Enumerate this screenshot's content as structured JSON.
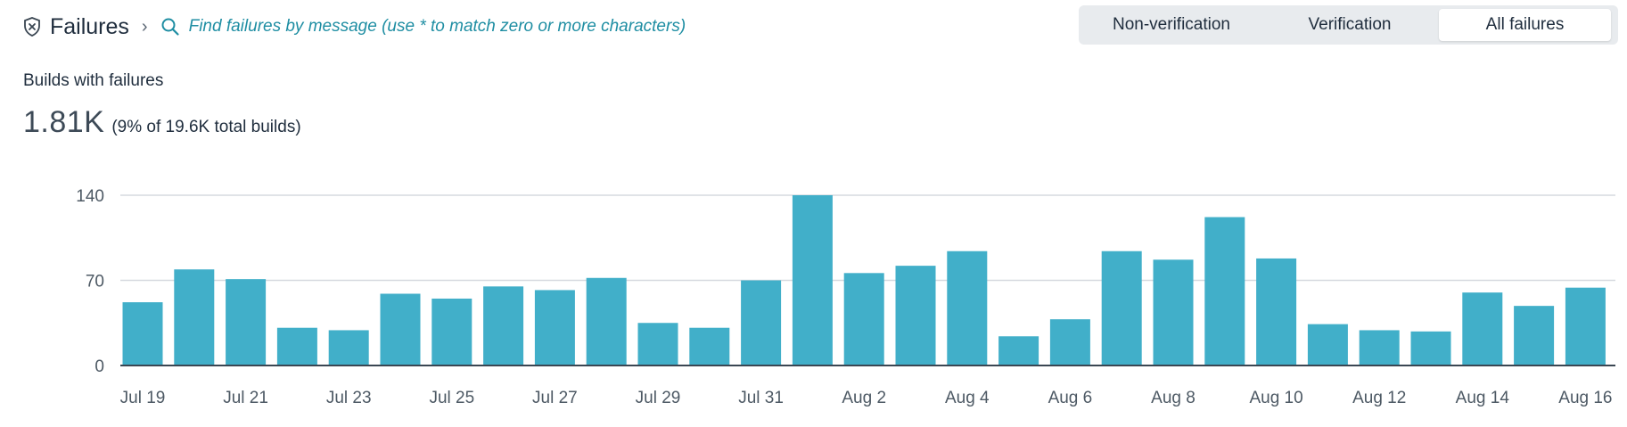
{
  "header": {
    "title": "Failures",
    "separator": "›",
    "search_placeholder": "Find failures by message (use * to match zero or more characters)"
  },
  "filters": [
    {
      "label": "Non-verification",
      "selected": false
    },
    {
      "label": "Verification",
      "selected": false
    },
    {
      "label": "All failures",
      "selected": true
    }
  ],
  "summary": {
    "title": "Builds with failures",
    "value": "1.81K",
    "detail": "(9% of 19.6K total builds)"
  },
  "colors": {
    "bar": "#41afc9",
    "accent": "#1f8ea3",
    "grid": "#d6dadf",
    "axis": "#3a4652"
  },
  "icons": {
    "title_icon": "shield-x-icon",
    "search_icon": "search-icon"
  },
  "chart_data": {
    "type": "bar",
    "categories": [
      "Jul 19",
      "Jul 20",
      "Jul 21",
      "Jul 22",
      "Jul 23",
      "Jul 24",
      "Jul 25",
      "Jul 26",
      "Jul 27",
      "Jul 28",
      "Jul 29",
      "Jul 30",
      "Jul 31",
      "Aug 1",
      "Aug 2",
      "Aug 3",
      "Aug 4",
      "Aug 5",
      "Aug 6",
      "Aug 7",
      "Aug 8",
      "Aug 9",
      "Aug 10",
      "Aug 11",
      "Aug 12",
      "Aug 13",
      "Aug 14",
      "Aug 15",
      "Aug 16"
    ],
    "values": [
      52,
      79,
      71,
      31,
      29,
      59,
      55,
      65,
      62,
      72,
      35,
      31,
      70,
      140,
      76,
      82,
      94,
      24,
      38,
      94,
      87,
      122,
      88,
      34,
      29,
      28,
      60,
      49,
      64
    ],
    "x_tick_labels": [
      "Jul 19",
      "Jul 21",
      "Jul 23",
      "Jul 25",
      "Jul 27",
      "Jul 29",
      "Jul 31",
      "Aug 2",
      "Aug 4",
      "Aug 6",
      "Aug 8",
      "Aug 10",
      "Aug 12",
      "Aug 14",
      "Aug 16"
    ],
    "y_ticks": [
      0,
      70,
      140
    ],
    "ylim": [
      0,
      140
    ],
    "grid": true,
    "title": "",
    "xlabel": "",
    "ylabel": ""
  }
}
